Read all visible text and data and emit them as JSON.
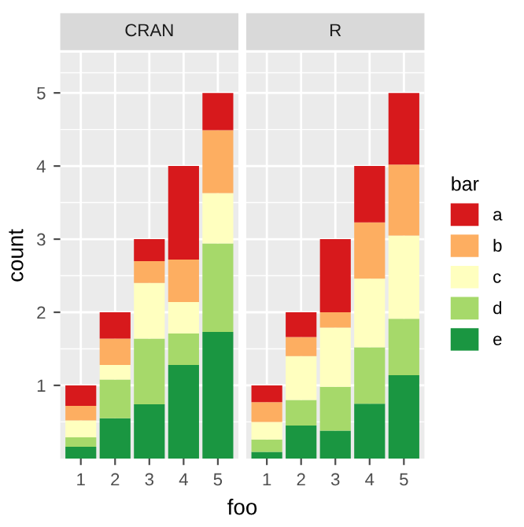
{
  "chart_data": [
    {
      "type": "bar",
      "title": "CRAN",
      "xlabel": "foo",
      "ylabel": "count",
      "categories": [
        "1",
        "2",
        "3",
        "4",
        "5"
      ],
      "stacked": true,
      "ylim": [
        0,
        5.55
      ],
      "yticks": [
        1,
        2,
        3,
        4,
        5
      ],
      "grid": true,
      "legend": "right",
      "legend_title": "bar",
      "series": [
        {
          "name": "e",
          "color": "#1a9641",
          "values": [
            0.16,
            0.55,
            0.74,
            1.28,
            1.73
          ]
        },
        {
          "name": "d",
          "color": "#a6d96a",
          "values": [
            0.13,
            0.53,
            0.9,
            0.43,
            1.21
          ]
        },
        {
          "name": "c",
          "color": "#ffffbf",
          "values": [
            0.23,
            0.2,
            0.76,
            0.43,
            0.69
          ]
        },
        {
          "name": "b",
          "color": "#fdae61",
          "values": [
            0.2,
            0.36,
            0.3,
            0.58,
            0.86
          ]
        },
        {
          "name": "a",
          "color": "#d7191c",
          "values": [
            0.28,
            0.36,
            0.3,
            1.28,
            0.51
          ]
        }
      ]
    },
    {
      "type": "bar",
      "title": "R",
      "categories": [
        "1",
        "2",
        "3",
        "4",
        "5"
      ],
      "stacked": true,
      "ylim": [
        0,
        5.55
      ],
      "yticks": [
        1,
        2,
        3,
        4,
        5
      ],
      "grid": true,
      "tick_labels": "x",
      "series": [
        {
          "color": "#1a9641",
          "values": [
            0.09,
            0.45,
            0.38,
            0.75,
            1.14
          ]
        },
        {
          "color": "#a6d96a",
          "values": [
            0.17,
            0.35,
            0.6,
            0.77,
            0.77
          ]
        },
        {
          "color": "#ffffbf",
          "values": [
            0.24,
            0.6,
            0.81,
            0.94,
            1.14
          ]
        },
        {
          "color": "#fdae61",
          "values": [
            0.27,
            0.26,
            0.21,
            0.77,
            0.97
          ]
        },
        {
          "color": "#d7191c",
          "values": [
            0.23,
            0.34,
            1.0,
            0.77,
            0.98
          ]
        }
      ]
    }
  ]
}
